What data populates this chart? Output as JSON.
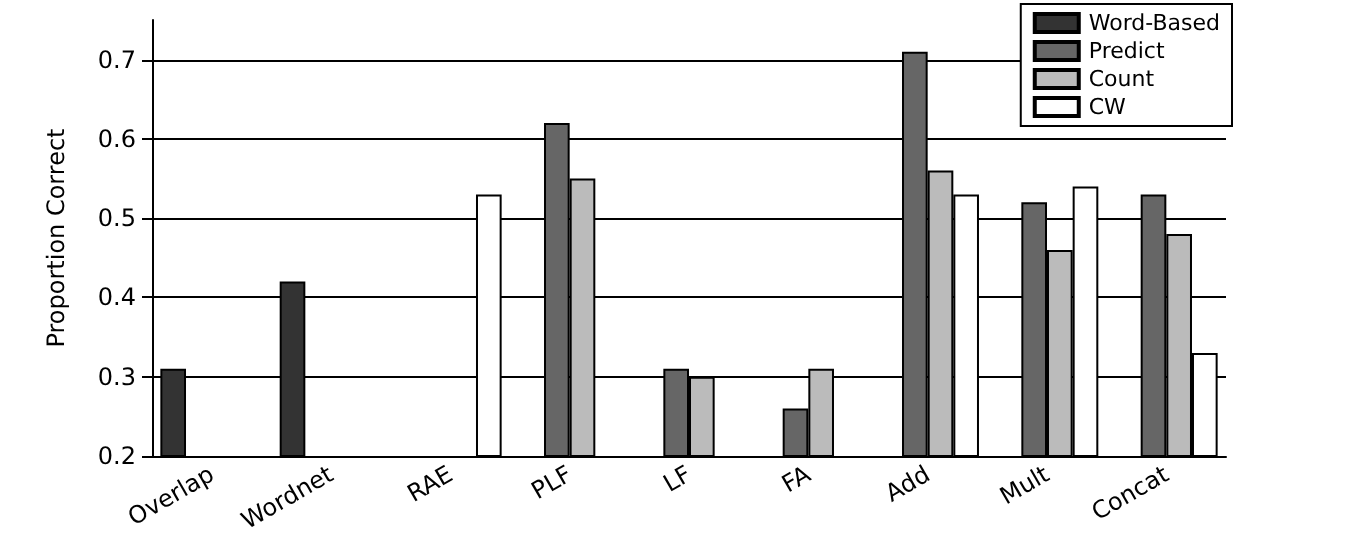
{
  "chart_data": {
    "type": "bar",
    "ylabel": "Proportion Correct",
    "categories": [
      "Overlap",
      "Wordnet",
      "RAE",
      "PLF",
      "LF",
      "FA",
      "Add",
      "Mult",
      "Concat"
    ],
    "series": [
      {
        "name": "Word-Based",
        "color": "#333333",
        "values": [
          0.31,
          0.42,
          null,
          null,
          null,
          null,
          null,
          null,
          null
        ]
      },
      {
        "name": "Predict",
        "color": "#666666",
        "values": [
          null,
          null,
          null,
          0.62,
          0.31,
          0.26,
          0.71,
          0.52,
          0.53
        ]
      },
      {
        "name": "Count",
        "color": "#bbbbbb",
        "values": [
          null,
          null,
          null,
          0.55,
          0.3,
          0.31,
          0.56,
          0.46,
          0.48
        ]
      },
      {
        "name": "CW",
        "color": "#ffffff",
        "values": [
          null,
          null,
          0.53,
          null,
          null,
          null,
          0.53,
          0.54,
          0.33
        ]
      }
    ],
    "ylim": [
      0.2,
      0.75
    ],
    "yticks": [
      0.2,
      0.3,
      0.4,
      0.5,
      0.6,
      0.7
    ],
    "grid": "y",
    "legend": "top right"
  }
}
